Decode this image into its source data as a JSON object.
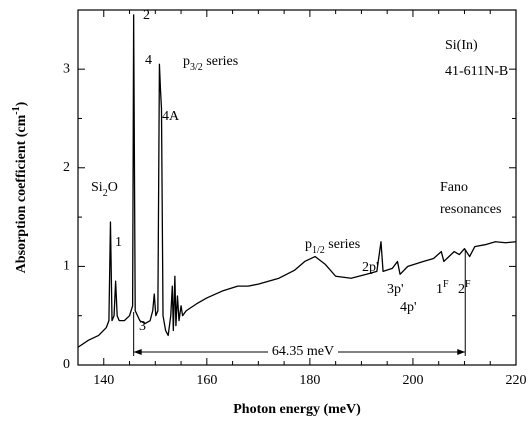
{
  "chart_data": {
    "type": "line",
    "x_label": "Photon energy (meV)",
    "y_label": [
      {
        "text": "Absorption coefficient (cm"
      },
      {
        "text": "-1",
        "style": "sup"
      },
      {
        "text": ")"
      }
    ],
    "xlim": [
      135,
      220
    ],
    "ylim": [
      0,
      3.6
    ],
    "xticks": [
      140,
      160,
      180,
      200,
      220
    ],
    "yticks": [
      0,
      1,
      2,
      3
    ],
    "x": [
      135,
      137,
      139,
      140.5,
      141,
      141.3,
      141.6,
      142,
      142.3,
      142.6,
      143,
      144,
      145,
      145.6,
      145.8,
      146.1,
      147,
      148,
      149,
      149.5,
      149.8,
      150.1,
      150.5,
      150.8,
      151,
      151.2,
      151.5,
      152,
      152.5,
      153,
      153.3,
      153.5,
      153.8,
      154,
      154.3,
      154.6,
      155,
      155.3,
      156,
      158,
      160,
      163,
      166,
      168,
      170,
      174,
      177,
      179,
      181,
      183,
      185,
      188,
      191,
      193,
      193.8,
      194.2,
      196,
      197,
      197.5,
      199,
      202,
      204,
      205.5,
      206,
      207,
      208,
      209,
      210,
      211,
      212,
      214,
      216,
      218,
      220
    ],
    "series": [
      {
        "color": "#000000",
        "values": [
          0.18,
          0.25,
          0.3,
          0.38,
          0.45,
          1.45,
          0.45,
          0.5,
          0.85,
          0.5,
          0.45,
          0.45,
          0.5,
          0.6,
          3.55,
          0.55,
          0.45,
          0.42,
          0.45,
          0.55,
          0.72,
          0.5,
          0.55,
          3.05,
          2.8,
          2.6,
          0.5,
          0.35,
          0.3,
          0.5,
          0.8,
          0.35,
          0.9,
          0.4,
          0.7,
          0.45,
          0.6,
          0.5,
          0.55,
          0.62,
          0.68,
          0.75,
          0.8,
          0.8,
          0.82,
          0.88,
          0.96,
          1.05,
          1.1,
          1.02,
          0.9,
          0.88,
          0.92,
          0.95,
          1.25,
          0.95,
          0.98,
          1.05,
          0.92,
          1.0,
          1.05,
          1.08,
          1.15,
          1.05,
          1.1,
          1.15,
          1.12,
          1.18,
          1.1,
          1.2,
          1.22,
          1.25,
          1.24,
          1.25
        ]
      }
    ],
    "interval": {
      "label": "64.35 meV",
      "x": [
        145.8,
        210.15
      ]
    },
    "annotations": [
      [
        {
          "text": "Si(In)"
        }
      ],
      [
        {
          "text": "41-611N-B"
        }
      ],
      [
        {
          "text": "p"
        },
        {
          "text": "3/2",
          "style": "sub"
        },
        {
          "text": " series"
        }
      ],
      [
        {
          "text": "2"
        }
      ],
      [
        {
          "text": "4"
        }
      ],
      [
        {
          "text": "4A"
        }
      ],
      [
        {
          "text": "Si"
        },
        {
          "text": "2",
          "style": "sub"
        },
        {
          "text": "O"
        }
      ],
      [
        {
          "text": "1"
        }
      ],
      [
        {
          "text": "3"
        }
      ],
      [
        {
          "text": "Fano"
        }
      ],
      [
        {
          "text": "resonances"
        }
      ],
      [
        {
          "text": "p"
        },
        {
          "text": "1/2",
          "style": "sub"
        },
        {
          "text": " series"
        }
      ],
      [
        {
          "text": "2p'"
        }
      ],
      [
        {
          "text": "3p'"
        }
      ],
      [
        {
          "text": "4p'"
        }
      ],
      [
        {
          "text": "1"
        },
        {
          "text": "F",
          "style": "sup"
        }
      ],
      [
        {
          "text": "2"
        },
        {
          "text": "F",
          "style": "sup"
        }
      ]
    ]
  }
}
